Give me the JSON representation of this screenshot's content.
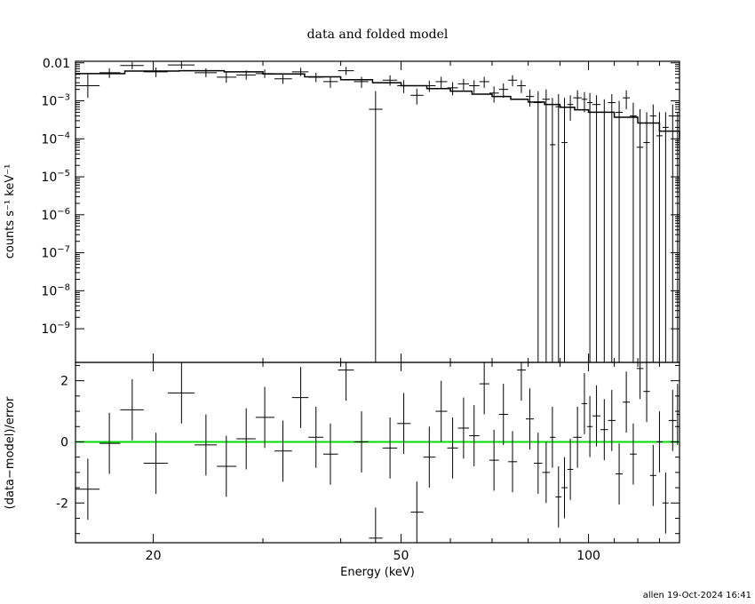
{
  "chart_data": [
    {
      "type": "scatter",
      "title": "data and folded model",
      "ylabel": "counts s⁻¹ keV⁻¹",
      "yscale": "log",
      "xscale": "log",
      "xlim": [
        15,
        140
      ],
      "ylim": [
        1.3e-10,
        0.011
      ],
      "yticks": [
        {
          "value": 0.01,
          "label": "0.01"
        },
        {
          "value": 0.001,
          "label": "10",
          "exp": "−3"
        },
        {
          "value": 0.0001,
          "label": "10",
          "exp": "−4"
        },
        {
          "value": 1e-05,
          "label": "10",
          "exp": "−5"
        },
        {
          "value": 1e-06,
          "label": "10",
          "exp": "−6"
        },
        {
          "value": 1e-07,
          "label": "10",
          "exp": "−7"
        },
        {
          "value": 1e-08,
          "label": "10",
          "exp": "−8"
        },
        {
          "value": 1e-09,
          "label": "10",
          "exp": "−9"
        }
      ],
      "series": [
        {
          "kind": "data",
          "points": [
            [
              15.7,
              0.0025,
              15.0,
              16.4,
              0.0012,
              0.005
            ],
            [
              17.0,
              0.0055,
              16.4,
              17.7,
              0.004,
              0.0072
            ],
            [
              18.5,
              0.0085,
              17.7,
              19.3,
              0.0068,
              0.0105
            ],
            [
              20.2,
              0.0058,
              19.3,
              21.1,
              0.0042,
              0.0076
            ],
            [
              22.2,
              0.0088,
              21.1,
              23.3,
              0.007,
              0.011
            ],
            [
              24.3,
              0.0055,
              23.3,
              25.3,
              0.0042,
              0.0072
            ],
            [
              26.2,
              0.0042,
              25.3,
              27.2,
              0.003,
              0.0056
            ],
            [
              28.2,
              0.0048,
              27.2,
              29.2,
              0.0036,
              0.0063
            ],
            [
              30.2,
              0.0052,
              29.2,
              31.3,
              0.004,
              0.0067
            ],
            [
              32.3,
              0.0038,
              31.3,
              33.4,
              0.0028,
              0.005
            ],
            [
              34.5,
              0.0058,
              33.4,
              35.5,
              0.0045,
              0.0074
            ],
            [
              36.5,
              0.0042,
              35.5,
              37.5,
              0.0031,
              0.0055
            ],
            [
              38.5,
              0.0032,
              37.5,
              39.6,
              0.0022,
              0.0043
            ],
            [
              40.8,
              0.0062,
              39.6,
              42.0,
              0.0048,
              0.0078
            ],
            [
              43.2,
              0.0032,
              42.0,
              44.3,
              0.0022,
              0.0043
            ],
            [
              45.5,
              0.0006,
              44.4,
              46.7,
              1.3e-10,
              0.0018
            ],
            [
              48.0,
              0.0035,
              46.7,
              49.3,
              0.0025,
              0.0047
            ],
            [
              50.5,
              0.0025,
              49.3,
              51.8,
              0.0016,
              0.0035
            ],
            [
              53.0,
              0.0014,
              51.8,
              54.3,
              0.0008,
              0.0021
            ],
            [
              55.5,
              0.0025,
              54.3,
              56.8,
              0.0017,
              0.0034
            ],
            [
              58.0,
              0.0032,
              56.8,
              59.3,
              0.0022,
              0.0043
            ],
            [
              60.5,
              0.0022,
              59.3,
              61.7,
              0.0014,
              0.0031
            ],
            [
              63.0,
              0.0028,
              61.7,
              64.3,
              0.0019,
              0.0038
            ],
            [
              65.5,
              0.0025,
              64.3,
              66.8,
              0.0016,
              0.0035
            ],
            [
              68.0,
              0.0032,
              66.8,
              69.3,
              0.0022,
              0.0043
            ],
            [
              70.5,
              0.0016,
              69.3,
              71.8,
              0.0009,
              0.0024
            ],
            [
              73.0,
              0.002,
              71.8,
              74.3,
              0.0012,
              0.0029
            ],
            [
              75.5,
              0.0035,
              74.3,
              76.8,
              0.0024,
              0.0047
            ],
            [
              78.0,
              0.0025,
              76.8,
              79.3,
              0.0016,
              0.0035
            ],
            [
              80.5,
              0.0013,
              79.3,
              81.7,
              0.0007,
              0.002
            ],
            [
              83.0,
              0.0009,
              81.7,
              84.3,
              1.3e-10,
              0.0018
            ],
            [
              85.5,
              0.0011,
              84.3,
              86.7,
              1.3e-10,
              0.002
            ],
            [
              87.5,
              7e-05,
              86.7,
              88.5,
              1.3e-10,
              0.0012
            ],
            [
              89.5,
              0.0007,
              88.5,
              90.5,
              1.3e-10,
              0.0015
            ],
            [
              91.5,
              8e-05,
              90.5,
              92.5,
              1.3e-10,
              0.0012
            ],
            [
              93.5,
              0.0008,
              92.5,
              94.5,
              0.0003,
              0.0014
            ],
            [
              96.0,
              0.0012,
              94.5,
              97.5,
              0.0006,
              0.0019
            ],
            [
              98.5,
              0.0011,
              97.5,
              99.5,
              0.0005,
              0.0017
            ],
            [
              100.5,
              0.0009,
              99.5,
              101.5,
              1.3e-10,
              0.0016
            ],
            [
              103.0,
              0.0008,
              101.5,
              104.5,
              1.3e-10,
              0.0014
            ],
            [
              106.0,
              0.0005,
              104.5,
              107.5,
              1.3e-10,
              0.0011
            ],
            [
              109.0,
              0.0009,
              107.5,
              110.5,
              1.3e-10,
              0.0015
            ],
            [
              112.0,
              0.0005,
              110.5,
              113.5,
              1.3e-10,
              0.001
            ],
            [
              115.0,
              0.0012,
              113.5,
              116.5,
              0.0006,
              0.0019
            ],
            [
              118.0,
              0.0004,
              116.5,
              119.5,
              1.3e-10,
              0.0009
            ],
            [
              121.0,
              6e-05,
              119.5,
              122.5,
              1.3e-10,
              0.0006
            ],
            [
              124.0,
              8e-05,
              122.5,
              125.5,
              1.3e-10,
              0.0005
            ],
            [
              127.0,
              0.0004,
              125.5,
              128.5,
              1.3e-10,
              0.0008
            ],
            [
              130.0,
              0.00012,
              128.5,
              131.5,
              1.3e-10,
              0.0005
            ],
            [
              133.0,
              0.0002,
              131.5,
              134.5,
              1.3e-10,
              0.0005
            ],
            [
              136.5,
              0.0004,
              134.5,
              138.5,
              1.3e-10,
              0.0008
            ],
            [
              139.0,
              0.0002,
              138.5,
              140.0,
              1.3e-10,
              0.0005
            ]
          ]
        },
        {
          "kind": "model",
          "color": "#000000",
          "points": [
            [
              15.0,
              0.0052
            ],
            [
              18.0,
              0.0061
            ],
            [
              22.0,
              0.0062
            ],
            [
              26.0,
              0.0058
            ],
            [
              30.0,
              0.0051
            ],
            [
              35.0,
              0.0043
            ],
            [
              40.0,
              0.0036
            ],
            [
              45.0,
              0.003
            ],
            [
              50.0,
              0.0025
            ],
            [
              55.0,
              0.0021
            ],
            [
              60.0,
              0.0018
            ],
            [
              65.0,
              0.0015
            ],
            [
              70.0,
              0.0013
            ],
            [
              75.0,
              0.0011
            ],
            [
              80.0,
              0.00093
            ],
            [
              85.0,
              0.0008
            ],
            [
              90.0,
              0.00068
            ],
            [
              95.0,
              0.00058
            ],
            [
              100.0,
              0.0005
            ],
            [
              110.0,
              0.00037
            ],
            [
              120.0,
              0.00026
            ],
            [
              130.0,
              0.00016
            ],
            [
              140.0,
              0.0001
            ]
          ]
        }
      ]
    },
    {
      "type": "scatter",
      "xlabel": "Energy (keV)",
      "ylabel": "(data−model)/error",
      "xscale": "log",
      "xlim": [
        15,
        140
      ],
      "ylim": [
        -3.3,
        2.6
      ],
      "xticks": [
        20,
        50,
        100
      ],
      "yticks": [
        -2,
        0,
        2
      ],
      "zero_line_color": "#00dd00",
      "series": [
        {
          "kind": "residuals",
          "points": [
            [
              15.7,
              -1.55,
              15.0,
              16.4,
              -2.55,
              -0.55
            ],
            [
              17.0,
              -0.05,
              16.4,
              17.7,
              -1.05,
              0.95
            ],
            [
              18.5,
              1.05,
              17.7,
              19.3,
              0.05,
              2.05
            ],
            [
              20.2,
              -0.7,
              19.3,
              21.1,
              -1.7,
              0.3
            ],
            [
              22.2,
              1.6,
              21.1,
              23.3,
              0.6,
              2.6
            ],
            [
              24.3,
              -0.1,
              23.3,
              25.3,
              -1.1,
              0.9
            ],
            [
              26.2,
              -0.8,
              25.3,
              27.2,
              -1.8,
              0.2
            ],
            [
              28.2,
              0.1,
              27.2,
              29.2,
              -0.9,
              1.1
            ],
            [
              30.2,
              0.8,
              29.2,
              31.3,
              -0.2,
              1.8
            ],
            [
              32.3,
              -0.3,
              31.3,
              33.4,
              -1.3,
              0.7
            ],
            [
              34.5,
              1.45,
              33.4,
              35.5,
              0.45,
              2.45
            ],
            [
              36.5,
              0.15,
              35.5,
              37.5,
              -0.85,
              1.15
            ],
            [
              38.5,
              -0.4,
              37.5,
              39.6,
              -1.4,
              0.6
            ],
            [
              40.8,
              2.35,
              39.6,
              42.0,
              1.35,
              2.6
            ],
            [
              43.2,
              0.0,
              42.0,
              44.3,
              -1.0,
              1.0
            ],
            [
              45.5,
              -3.15,
              44.4,
              46.7,
              -3.3,
              -2.15
            ],
            [
              48.0,
              -0.2,
              46.7,
              49.3,
              -1.2,
              0.8
            ],
            [
              50.5,
              0.6,
              49.3,
              51.8,
              -0.4,
              1.6
            ],
            [
              53.0,
              -2.3,
              51.8,
              54.3,
              -3.3,
              -1.3
            ],
            [
              55.5,
              -0.5,
              54.3,
              56.8,
              -1.5,
              0.5
            ],
            [
              58.0,
              1.0,
              56.8,
              59.3,
              0.0,
              2.0
            ],
            [
              60.5,
              -0.2,
              59.3,
              61.7,
              -1.2,
              0.8
            ],
            [
              63.0,
              0.45,
              61.7,
              64.3,
              -0.55,
              1.45
            ],
            [
              65.5,
              0.2,
              64.3,
              66.8,
              -0.8,
              1.2
            ],
            [
              68.0,
              1.9,
              66.8,
              69.3,
              0.9,
              2.6
            ],
            [
              70.5,
              -0.6,
              69.3,
              71.8,
              -1.6,
              0.4
            ],
            [
              73.0,
              0.9,
              71.8,
              74.3,
              -0.1,
              1.9
            ],
            [
              75.5,
              -0.65,
              74.3,
              76.8,
              -1.65,
              0.35
            ],
            [
              78.0,
              2.35,
              76.8,
              79.3,
              1.35,
              2.6
            ],
            [
              80.5,
              0.75,
              79.3,
              81.7,
              -0.25,
              1.75
            ],
            [
              83.0,
              -0.7,
              81.7,
              84.3,
              -1.7,
              0.3
            ],
            [
              85.5,
              -1.0,
              84.3,
              86.7,
              -2.0,
              0.0
            ],
            [
              87.5,
              0.15,
              86.7,
              88.5,
              -0.85,
              1.15
            ],
            [
              89.5,
              -1.8,
              88.5,
              90.5,
              -2.8,
              -0.8
            ],
            [
              91.5,
              -1.5,
              90.5,
              92.5,
              -2.5,
              -0.5
            ],
            [
              93.5,
              -0.9,
              92.5,
              94.5,
              -1.9,
              0.1
            ],
            [
              96.0,
              0.15,
              94.5,
              97.5,
              -0.85,
              1.15
            ],
            [
              98.5,
              1.25,
              97.5,
              99.5,
              0.25,
              2.25
            ],
            [
              100.5,
              0.5,
              99.5,
              101.5,
              -0.5,
              1.5
            ],
            [
              103.0,
              0.85,
              101.5,
              104.5,
              -0.15,
              1.85
            ],
            [
              106.0,
              0.4,
              104.5,
              107.5,
              -0.6,
              1.4
            ],
            [
              109.0,
              0.7,
              107.5,
              110.5,
              -0.3,
              1.7
            ],
            [
              112.0,
              -1.05,
              110.5,
              113.5,
              -2.05,
              -0.05
            ],
            [
              115.0,
              1.3,
              113.5,
              116.5,
              0.3,
              2.3
            ],
            [
              118.0,
              -0.4,
              116.5,
              119.5,
              -1.4,
              0.6
            ],
            [
              121.0,
              2.4,
              119.5,
              122.5,
              1.4,
              2.6
            ],
            [
              124.0,
              1.65,
              122.5,
              125.5,
              0.65,
              2.6
            ],
            [
              127.0,
              -1.1,
              125.5,
              128.5,
              -2.1,
              -0.1
            ],
            [
              130.0,
              0.0,
              128.5,
              131.5,
              -1.0,
              1.0
            ],
            [
              133.0,
              -2.0,
              131.5,
              134.5,
              -3.0,
              -1.0
            ],
            [
              136.5,
              0.7,
              134.5,
              138.5,
              -0.3,
              1.7
            ],
            [
              139.0,
              0.9,
              138.5,
              140.0,
              -0.1,
              1.9
            ]
          ]
        }
      ]
    }
  ],
  "footer": "allen 19-Oct-2024 16:41"
}
